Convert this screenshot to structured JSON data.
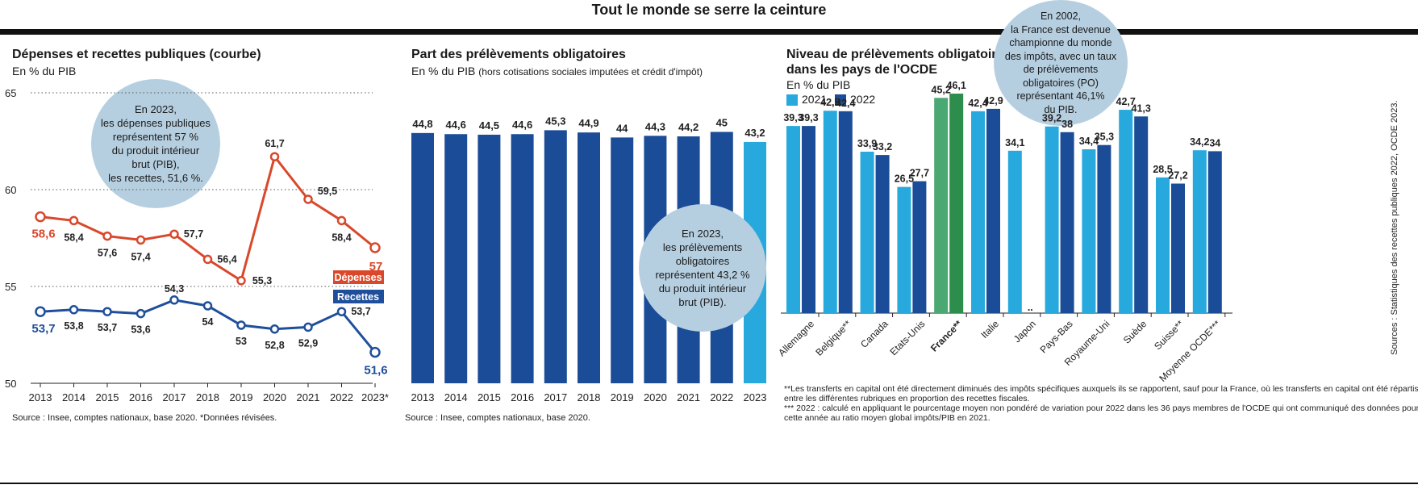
{
  "page_title": "Tout le monde se serre la ceinture",
  "colors": {
    "depenses": "#d9482b",
    "recettes": "#1f4f9b",
    "bar_dark": "#1b4c97",
    "bar_light": "#28a9de",
    "france_2021": "#4aa872",
    "france_2022": "#2d8d4c",
    "bubble": "#b6cfe0"
  },
  "panel1": {
    "title": "Dépenses et recettes publiques (courbe)",
    "subtitle": "En % du PIB",
    "bubble_text": [
      "En 2023,",
      "les dépenses publiques",
      "représentent 57 %",
      "du produit intérieur",
      "brut (PIB),",
      "les recettes, 51,6 %."
    ],
    "label_depenses": "Dépenses",
    "label_recettes": "Recettes",
    "source": "Source : Insee, comptes nationaux, base 2020.    *Données révisées."
  },
  "panel2": {
    "title": "Part des prélèvements obligatoires",
    "subtitle": "En % du PIB",
    "subtitle_note": "(hors cotisations sociales imputées et crédit d'impôt)",
    "bubble_text": [
      "En 2023,",
      "les prélèvements",
      "obligatoires",
      "représentent 43,2 %",
      "du produit intérieur",
      "brut (PIB)."
    ],
    "source": "Source : Insee, comptes nationaux, base 2020."
  },
  "panel3": {
    "title_line1": "Niveau de prélèvements obligatoires",
    "title_line2": "dans les pays de l'OCDE",
    "subtitle": "En % du PIB",
    "legend_2021": "2021",
    "legend_2022": "2022",
    "bubble_text": [
      "En 2002,",
      "la France est devenue",
      "championne du monde",
      "des impôts, avec un taux",
      "de prélèvements",
      "obligatoires (PO)",
      "représentant 46,1%",
      "du PIB."
    ],
    "notes": [
      "**Les transferts en capital ont été directement diminués des impôts spécifiques auxquels ils se rapportent, sauf pour la France, où les transferts en capital ont été répartis entre les différentes rubriques en proportion des recettes fiscales.",
      "*** 2022 : calculé en appliquant le pourcentage moyen non pondéré de variation pour 2022 dans les 36 pays membres de l'OCDE qui ont communiqué des données pour cette année au ratio moyen global impôts/PIB en 2021."
    ],
    "vertical_source": "Sources : Statistiques des recettes publiques 2022, OCDE 2023."
  },
  "chart_data": [
    {
      "type": "line",
      "title": "Dépenses et recettes publiques (courbe)",
      "ylabel": "En % du PIB",
      "x": [
        "2013",
        "2014",
        "2015",
        "2016",
        "2017",
        "2018",
        "2019",
        "2020",
        "2021",
        "2022",
        "2023*"
      ],
      "ylim": [
        50,
        65
      ],
      "yticks": [
        50,
        55,
        60,
        65
      ],
      "grid": true,
      "series": [
        {
          "name": "Dépenses",
          "values": [
            58.6,
            58.4,
            57.6,
            57.4,
            57.7,
            56.4,
            55.3,
            61.7,
            59.5,
            58.4,
            57
          ],
          "labels": [
            "58,6",
            "58,4",
            "57,6",
            "57,4",
            "57,7",
            "56,4",
            "55,3",
            "61,7",
            "59,5",
            "58,4",
            "57"
          ]
        },
        {
          "name": "Recettes",
          "values": [
            53.7,
            53.8,
            53.7,
            53.6,
            54.3,
            54,
            53,
            52.8,
            52.9,
            53.7,
            51.6
          ],
          "labels": [
            "53,7",
            "53,8",
            "53,7",
            "53,6",
            "54,3",
            "54",
            "53",
            "52,8",
            "52,9",
            "53,7",
            "51,6"
          ]
        }
      ]
    },
    {
      "type": "bar",
      "title": "Part des prélèvements obligatoires",
      "ylabel": "En % du PIB",
      "categories": [
        "2013",
        "2014",
        "2015",
        "2016",
        "2017",
        "2018",
        "2019",
        "2020",
        "2021",
        "2022",
        "2023"
      ],
      "values": [
        44.8,
        44.6,
        44.5,
        44.6,
        45.3,
        44.9,
        44,
        44.3,
        44.2,
        45,
        43.2
      ],
      "labels": [
        "44,8",
        "44,6",
        "44,5",
        "44,6",
        "45,3",
        "44,9",
        "44",
        "44,3",
        "44,2",
        "45",
        "43,2"
      ],
      "ylim": [
        0,
        52
      ],
      "highlight_last": true
    },
    {
      "type": "bar",
      "title": "Niveau de prélèvements obligatoires dans les pays de l'OCDE",
      "ylabel": "En % du PIB",
      "categories": [
        "Allemagne",
        "Belgique**",
        "Canada",
        "Etats-Unis",
        "France**",
        "Italie",
        "Japon",
        "Pays-Bas",
        "Royaume-Uni",
        "Suède",
        "Suisse**",
        "Moyenne OCDE***"
      ],
      "highlight": "France**",
      "ylim": [
        0,
        56
      ],
      "series": [
        {
          "name": "2021",
          "values": [
            39.3,
            42.5,
            33.9,
            26.5,
            45.2,
            42.4,
            34.1,
            39.2,
            34.4,
            42.7,
            28.5,
            34.2
          ],
          "labels": [
            "39,3",
            "42,5",
            "33,9",
            "26,5",
            "45,2",
            "42,4",
            "34,1",
            "39,2",
            "34,4",
            "42,7",
            "28,5",
            "34,2"
          ]
        },
        {
          "name": "2022",
          "values": [
            39.3,
            42.4,
            33.2,
            27.7,
            46.1,
            42.9,
            null,
            38,
            35.3,
            41.3,
            27.2,
            34
          ],
          "labels": [
            "39,3",
            "42,4",
            "33,2",
            "27,7",
            "46,1",
            "42,9",
            "..",
            "38",
            "35,3",
            "41,3",
            "27,2",
            "34"
          ]
        }
      ]
    }
  ]
}
